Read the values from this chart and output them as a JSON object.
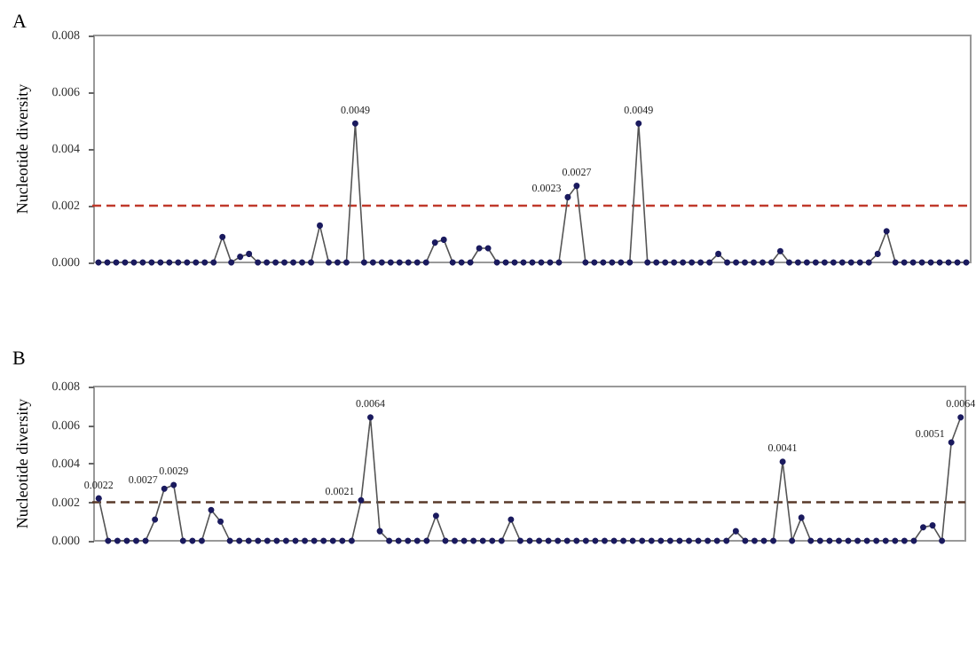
{
  "chart_data": [
    {
      "type": "line",
      "title": "A",
      "ylabel": "Nucleotide diversity",
      "marker": "circle",
      "line_style": "solid",
      "categories": [
        null,
        null,
        null,
        null,
        null,
        null,
        null,
        null,
        null,
        null,
        null,
        null,
        null,
        null,
        null,
        null,
        null,
        null,
        null,
        null,
        null,
        null,
        null,
        null,
        null,
        null,
        null,
        null,
        null,
        null,
        null,
        null,
        null,
        null,
        null,
        null,
        null,
        null,
        null,
        null,
        null,
        null,
        null,
        null,
        null,
        null,
        null,
        null,
        null,
        null,
        null,
        null,
        null,
        null,
        null,
        null,
        null,
        null,
        null,
        null,
        null,
        null,
        null,
        null,
        null,
        null,
        null,
        null,
        null,
        null,
        null,
        null,
        null,
        null,
        null,
        null,
        null,
        null,
        null,
        null,
        null,
        null,
        null,
        null,
        null,
        null,
        null,
        null,
        null,
        null,
        null,
        null,
        null,
        null,
        null,
        null,
        null,
        null,
        null
      ],
      "series": [
        {
          "color": "#1a1a5e",
          "values": [
            0,
            0,
            0,
            0,
            0,
            0,
            0,
            0,
            0,
            0,
            0,
            0,
            0,
            0,
            0.0009,
            0,
            0.0002,
            0.0003,
            0,
            0,
            0,
            0,
            0,
            0,
            0,
            0.0013,
            0,
            0,
            0,
            0.0049,
            0,
            0,
            0,
            0,
            0,
            0,
            0,
            0,
            0.0007,
            0.0008,
            0,
            0,
            0,
            0.0005,
            0.0005,
            0,
            0,
            0,
            0,
            0,
            0,
            0,
            0,
            0.0023,
            0.0027,
            0,
            0,
            0,
            0,
            0,
            0,
            0.0049,
            0,
            0,
            0,
            0,
            0,
            0,
            0,
            0,
            0.0003,
            0,
            0,
            0,
            0,
            0,
            0,
            0.0004,
            0,
            0,
            0,
            0,
            0,
            0,
            0,
            0,
            0,
            0,
            0.0003,
            0.0011,
            0,
            0,
            0,
            0,
            0,
            0,
            0,
            0,
            0
          ],
          "value_labels": [
            null,
            null,
            null,
            null,
            null,
            null,
            null,
            null,
            null,
            null,
            null,
            null,
            null,
            null,
            null,
            null,
            null,
            null,
            null,
            null,
            null,
            null,
            null,
            null,
            null,
            null,
            null,
            null,
            null,
            "0.0049",
            null,
            null,
            null,
            null,
            null,
            null,
            null,
            null,
            null,
            null,
            null,
            null,
            null,
            null,
            null,
            null,
            null,
            null,
            null,
            null,
            null,
            null,
            null,
            "0.0023",
            "0.0027",
            null,
            null,
            null,
            null,
            null,
            null,
            "0.0049",
            null,
            null,
            null,
            null,
            null,
            null,
            null,
            null,
            null,
            null,
            null,
            null,
            null,
            null,
            null,
            null,
            null,
            null,
            null,
            null,
            null,
            null,
            null,
            null,
            null,
            null,
            null,
            null,
            null,
            null,
            null,
            null,
            null,
            null,
            null,
            null,
            null
          ]
        }
      ],
      "ylim": [
        0,
        0.008
      ],
      "yticks": [
        {
          "value": 0,
          "label": "0.000"
        },
        {
          "value": 0.002,
          "label": "0.002"
        },
        {
          "value": 0.004,
          "label": "0.004"
        },
        {
          "value": 0.006,
          "label": "0.006"
        },
        {
          "value": 0.008,
          "label": "0.008"
        }
      ],
      "ref_lines": [
        {
          "axis": "y",
          "value": 0.002,
          "color": "#c0392b",
          "line_style": "dashed"
        }
      ]
    },
    {
      "type": "line",
      "title": "B",
      "ylabel": "Nucleotide diversity",
      "marker": "circle",
      "line_style": "solid",
      "categories": [
        null,
        null,
        null,
        null,
        null,
        null,
        null,
        null,
        null,
        null,
        null,
        null,
        null,
        null,
        null,
        null,
        null,
        null,
        null,
        null,
        null,
        null,
        null,
        null,
        null,
        null,
        null,
        null,
        null,
        null,
        null,
        null,
        null,
        null,
        null,
        null,
        null,
        null,
        null,
        null,
        null,
        null,
        null,
        null,
        null,
        null,
        null,
        null,
        null,
        null,
        null,
        null,
        null,
        null,
        null,
        null,
        null,
        null,
        null,
        null,
        null,
        null,
        null,
        null,
        null,
        null,
        null,
        null,
        null,
        null,
        null,
        null,
        null,
        null,
        null,
        null,
        null,
        null,
        null,
        null,
        null,
        null,
        null,
        null,
        null,
        null,
        null,
        null,
        null,
        null,
        null,
        null,
        null
      ],
      "series": [
        {
          "color": "#1a1a5e",
          "values": [
            0.0022,
            0,
            0,
            0,
            0,
            0,
            0.0011,
            0.0027,
            0.0029,
            0,
            0,
            0,
            0.0016,
            0.001,
            0,
            0,
            0,
            0,
            0,
            0,
            0,
            0,
            0,
            0,
            0,
            0,
            0,
            0,
            0.0021,
            0.0064,
            0.0005,
            0,
            0,
            0,
            0,
            0,
            0.0013,
            0,
            0,
            0,
            0,
            0,
            0,
            0,
            0.0011,
            0,
            0,
            0,
            0,
            0,
            0,
            0,
            0,
            0,
            0,
            0,
            0,
            0,
            0,
            0,
            0,
            0,
            0,
            0,
            0,
            0,
            0,
            0,
            0.0005,
            0,
            0,
            0,
            0,
            0.0041,
            0,
            0.0012,
            0,
            0,
            0,
            0,
            0,
            0,
            0,
            0,
            0,
            0,
            0,
            0,
            0.0007,
            0.0008,
            0,
            0.0051,
            0.0064
          ],
          "value_labels": [
            "0.0022",
            null,
            null,
            null,
            null,
            null,
            null,
            "0.0027",
            "0.0029",
            null,
            null,
            null,
            null,
            null,
            null,
            null,
            null,
            null,
            null,
            null,
            null,
            null,
            null,
            null,
            null,
            null,
            null,
            null,
            "0.0021",
            "0.0064",
            null,
            null,
            null,
            null,
            null,
            null,
            null,
            null,
            null,
            null,
            null,
            null,
            null,
            null,
            null,
            null,
            null,
            null,
            null,
            null,
            null,
            null,
            null,
            null,
            null,
            null,
            null,
            null,
            null,
            null,
            null,
            null,
            null,
            null,
            null,
            null,
            null,
            null,
            null,
            null,
            null,
            null,
            null,
            "0.0041",
            null,
            null,
            null,
            null,
            null,
            null,
            null,
            null,
            null,
            null,
            null,
            null,
            null,
            null,
            null,
            null,
            null,
            "0.0051",
            "0.0064"
          ]
        }
      ],
      "ylim": [
        0,
        0.008
      ],
      "yticks": [
        {
          "value": 0,
          "label": "0.000"
        },
        {
          "value": 0.002,
          "label": "0.002"
        },
        {
          "value": 0.004,
          "label": "0.004"
        },
        {
          "value": 0.006,
          "label": "0.006"
        },
        {
          "value": 0.008,
          "label": "0.008"
        }
      ],
      "ref_lines": [
        {
          "axis": "y",
          "value": 0.002,
          "color": "#5a3a2a",
          "line_style": "dashed"
        }
      ]
    }
  ]
}
